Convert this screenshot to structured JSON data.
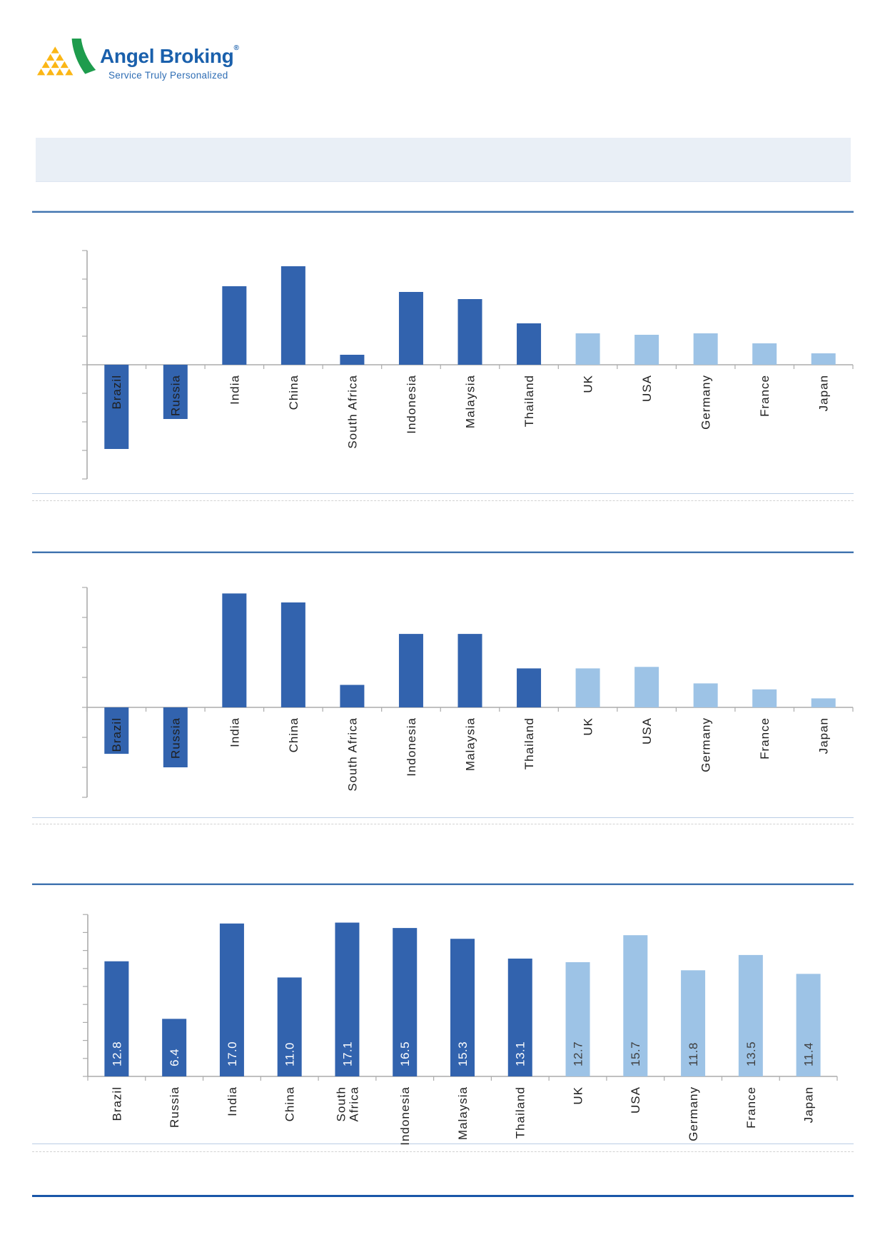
{
  "logo": {
    "brand": "Angel Broking",
    "registered_mark": "®",
    "tagline": "Service Truly Personalized",
    "brand_color": "#1A60AC",
    "mark_green": "#1E9C4D",
    "mark_yellow": "#FBB615"
  },
  "banner": {
    "text": "",
    "fill": "#E9EFF6"
  },
  "colors": {
    "bar_dark": "#3263AE",
    "bar_light": "#9DC3E6",
    "axis": "#ABABAB",
    "label_text": "#1F1F1F",
    "data_label_on_dark": "#FFFFFF",
    "data_label_on_light": "#3F3F3F",
    "section_header_rule": "#4072AE",
    "section_bottom_rule": "#B9CDE5",
    "footer_rule": "#1956A8"
  },
  "chart_data": [
    {
      "type": "bar",
      "title": "",
      "categories": [
        "Brazil",
        "Russia",
        "India",
        "China",
        "South Africa",
        "Indonesia",
        "Malaysia",
        "Thailand",
        "UK",
        "USA",
        "Germany",
        "France",
        "Japan"
      ],
      "values": [
        -5.9,
        -3.8,
        5.5,
        6.9,
        0.7,
        5.1,
        4.6,
        2.9,
        2.2,
        2.1,
        2.2,
        1.5,
        0.8
      ],
      "group_split_index": 8,
      "bar_colors": {
        "emerging": "#3263AE",
        "developed": "#9DC3E6"
      },
      "data_labels": null,
      "value_axis": {
        "labels_visible": false,
        "tick_interval": 2,
        "range": [
          -8,
          8
        ]
      },
      "grid": false,
      "legend": false,
      "category_labels_rotated_90": true
    },
    {
      "type": "bar",
      "title": "",
      "categories": [
        "Brazil",
        "Russia",
        "India",
        "China",
        "South Africa",
        "Indonesia",
        "Malaysia",
        "Thailand",
        "UK",
        "USA",
        "Germany",
        "France",
        "Japan"
      ],
      "values": [
        -3.1,
        -4.0,
        7.6,
        7.0,
        1.5,
        4.9,
        4.9,
        2.6,
        2.6,
        2.7,
        1.6,
        1.2,
        0.6
      ],
      "group_split_index": 8,
      "bar_colors": {
        "emerging": "#3263AE",
        "developed": "#9DC3E6"
      },
      "data_labels": null,
      "value_axis": {
        "labels_visible": false,
        "tick_interval": 2,
        "range": [
          -6,
          8
        ]
      },
      "grid": false,
      "legend": false,
      "category_labels_rotated_90": true
    },
    {
      "type": "bar",
      "title": "",
      "categories": [
        "Brazil",
        "Russia",
        "India",
        "China",
        [
          "South",
          "Africa"
        ],
        "Indonesia",
        "Malaysia",
        "Thailand",
        "UK",
        "USA",
        "Germany",
        "France",
        "Japan"
      ],
      "values": [
        12.8,
        6.4,
        17.0,
        11.0,
        17.1,
        16.5,
        15.3,
        13.1,
        12.7,
        15.7,
        11.8,
        13.5,
        11.4
      ],
      "group_split_index": 8,
      "bar_colors": {
        "emerging": "#3263AE",
        "developed": "#9DC3E6"
      },
      "data_labels": [
        "12.8",
        "6.4",
        "17.0",
        "11.0",
        "17.1",
        "16.5",
        "15.3",
        "13.1",
        "12.7",
        "15.7",
        "11.8",
        "13.5",
        "11.4"
      ],
      "value_axis": {
        "labels_visible": false,
        "tick_interval": 2,
        "range": [
          0,
          18
        ]
      },
      "grid": false,
      "legend": false,
      "category_labels_rotated_90": true
    }
  ]
}
